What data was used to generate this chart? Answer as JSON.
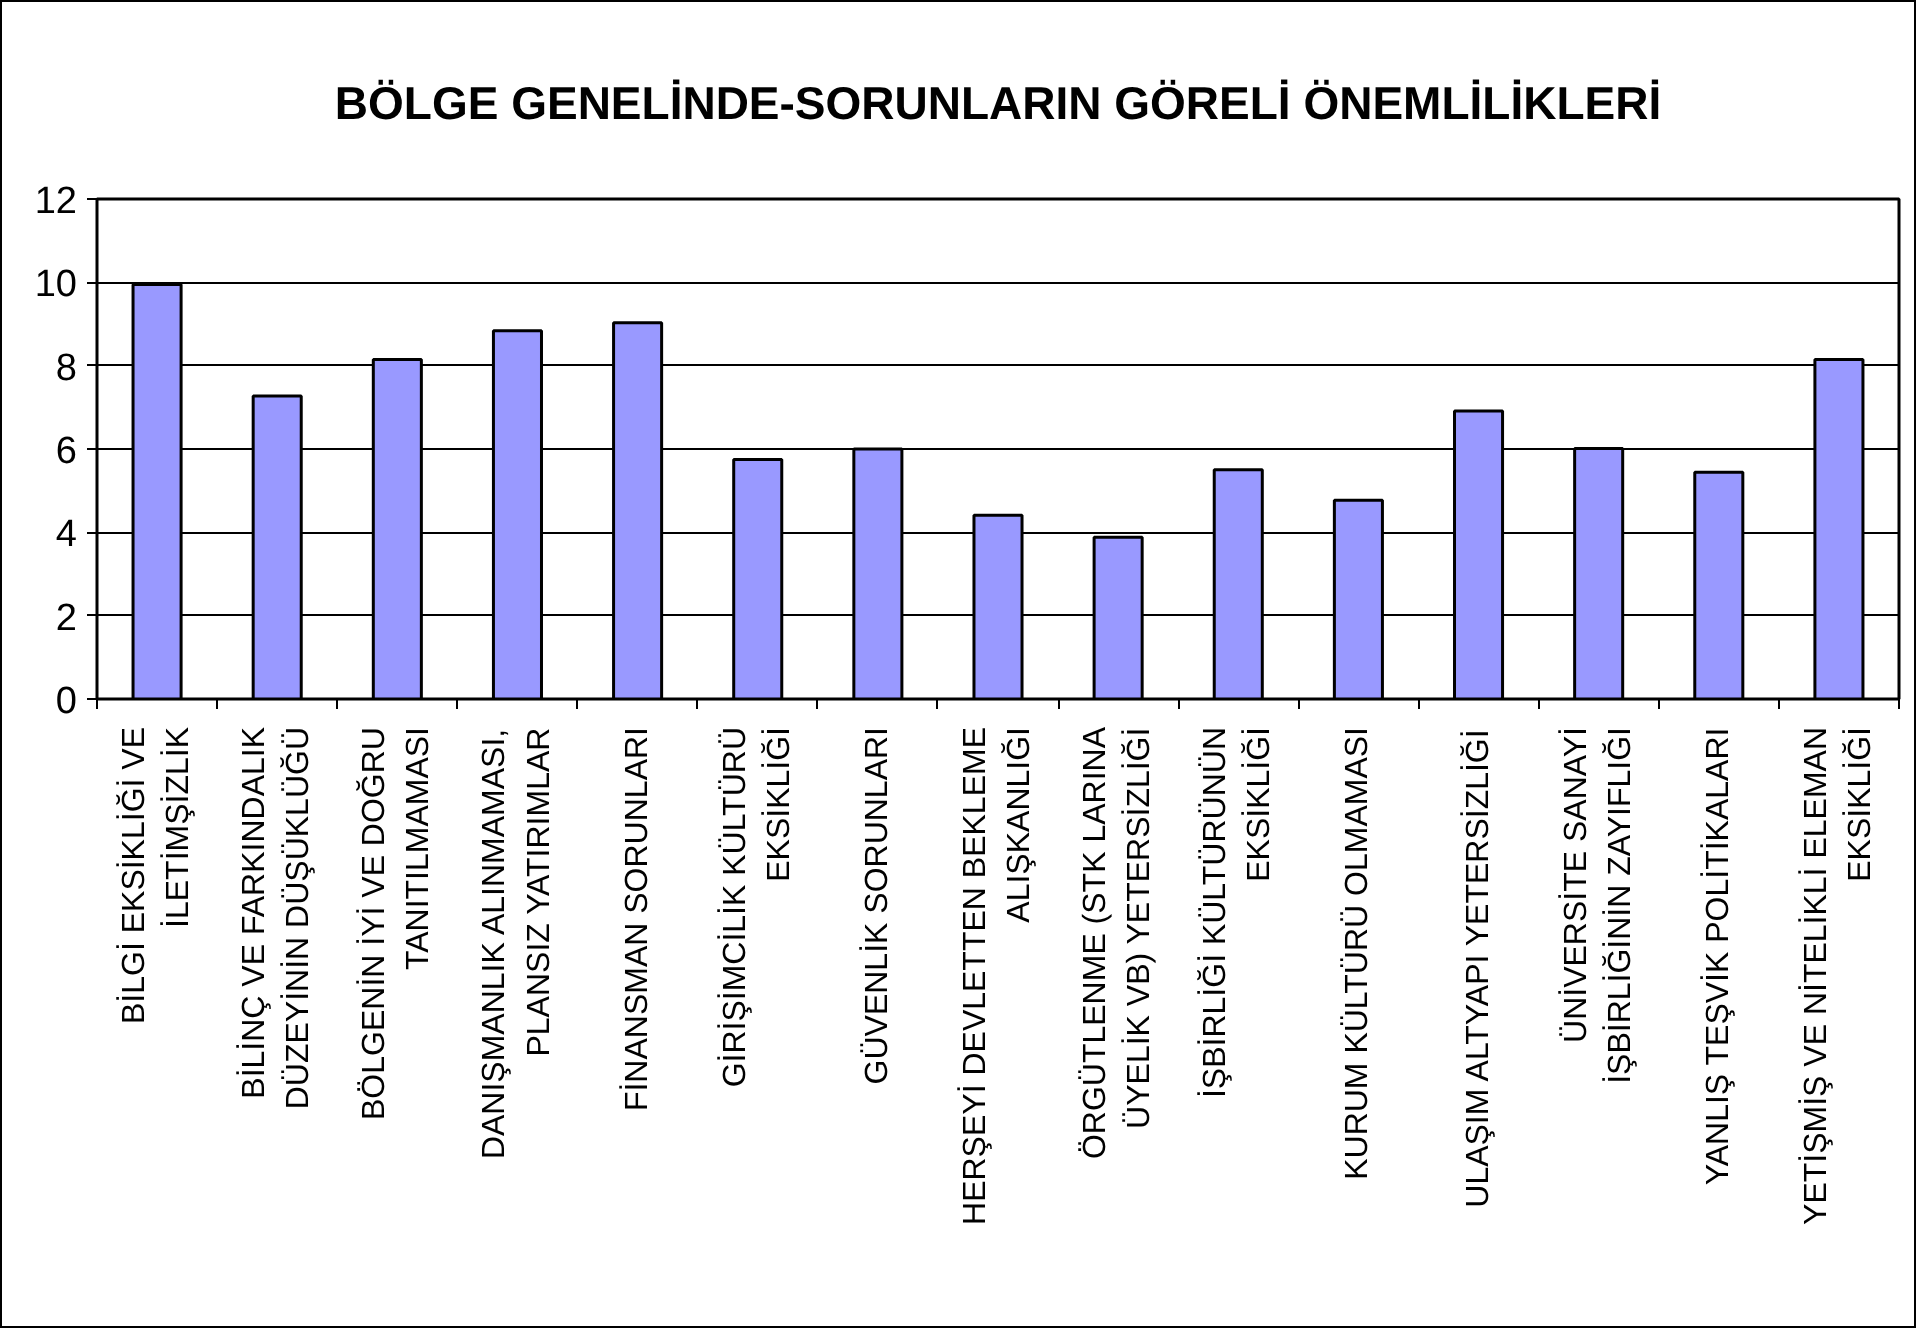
{
  "chart_data": {
    "type": "bar",
    "title": "BÖLGE GENELİNDE-SORUNLARIN GÖRELİ ÖNEMLİLİKLERİ",
    "categories": [
      "BİLGİ EKSİKLİĞİ VE\nİLETİMŞİZLİK",
      "BİLİNÇ VE FARKINDALIK\nDÜZEYİNİN DÜŞÜKLÜĞÜ",
      "BÖLGENİN İYİ VE DOĞRU\nTANITILMAMASI",
      "DANIŞMANLIK ALINMAMASI,\nPLANSIZ YATIRIMLAR",
      "FİNANSMAN SORUNLARI",
      "GİRİŞİMCİLİK KÜLTÜRÜ\nEKSİKLİĞİ",
      "GÜVENLİK SORUNLARI",
      "HERŞEYİ DEVLETTEN BEKLEME\nALIŞKANLIĞI",
      "ÖRGÜTLENME (STK LARINA\nÜYELİK VB) YETERSİZLİĞİ",
      "İŞBİRLİĞİ KÜLTÜRÜNÜN\nEKSİKLİĞİ",
      "KURUM KÜLTÜRÜ OLMAMASI",
      "ULAŞIM ALTYAPI YETERSİZLİĞİ",
      "ÜNİVERSİTE SANAYİ\nİŞBİRLİĞİNİN ZAYIFLIĞI",
      "YANLIŞ TEŞVİK POLİTİKALARI",
      "YETİŞMİŞ VE NİTELİKLİ ELEMAN\nEKSİKLİĞİ"
    ],
    "values": [
      9.95,
      7.27,
      8.15,
      8.84,
      9.03,
      5.75,
      6.0,
      4.41,
      3.88,
      5.5,
      4.77,
      6.91,
      6.01,
      5.44,
      8.15
    ],
    "color": "#9999ff",
    "ylim": [
      0,
      12
    ],
    "yticks": [
      0,
      2,
      4,
      6,
      8,
      10,
      12
    ],
    "grid": "y"
  }
}
